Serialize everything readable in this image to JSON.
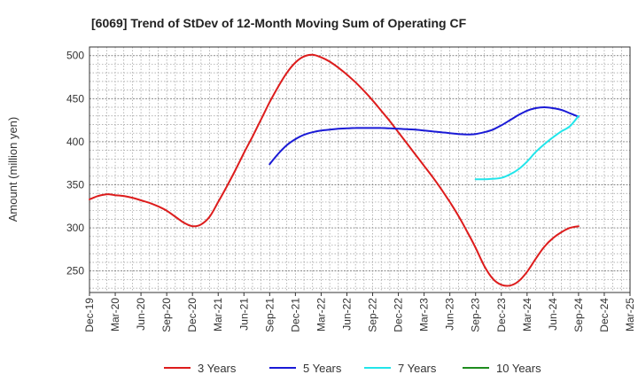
{
  "chart_data": {
    "type": "line",
    "title": "[6069]  Trend of StDev of 12-Month Moving Sum of Operating CF",
    "ylabel": "Amount (million yen)",
    "xlabel": "",
    "ylim": [
      225,
      510
    ],
    "yticks": [
      250,
      300,
      350,
      400,
      450,
      500
    ],
    "grid": true,
    "legend_position": "bottom",
    "x_tick_labels": [
      "Dec-19",
      "Mar-20",
      "Jun-20",
      "Sep-20",
      "Dec-20",
      "Mar-21",
      "Jun-21",
      "Sep-21",
      "Dec-21",
      "Mar-22",
      "Jun-22",
      "Sep-22",
      "Dec-22",
      "Mar-23",
      "Jun-23",
      "Sep-23",
      "Dec-23",
      "Mar-24",
      "Jun-24",
      "Sep-24",
      "Dec-24",
      "Mar-25"
    ],
    "series": [
      {
        "name": "3 Years",
        "color": "#dd1c1c",
        "x": [
          "Dec-19",
          "Jan-20",
          "Feb-20",
          "Mar-20",
          "Apr-20",
          "May-20",
          "Jun-20",
          "Jul-20",
          "Aug-20",
          "Sep-20",
          "Oct-20",
          "Nov-20",
          "Dec-20",
          "Jan-21",
          "Feb-21",
          "Mar-21",
          "Apr-21",
          "May-21",
          "Jun-21",
          "Jul-21",
          "Aug-21",
          "Sep-21",
          "Oct-21",
          "Nov-21",
          "Dec-21",
          "Jan-22",
          "Feb-22",
          "Mar-22",
          "Apr-22",
          "May-22",
          "Jun-22",
          "Jul-22",
          "Aug-22",
          "Sep-22",
          "Oct-22",
          "Nov-22",
          "Dec-22",
          "Jan-23",
          "Feb-23",
          "Mar-23",
          "Apr-23",
          "May-23",
          "Jun-23",
          "Jul-23",
          "Aug-23",
          "Sep-23",
          "Oct-23",
          "Nov-23",
          "Dec-23",
          "Jan-24",
          "Feb-24",
          "Mar-24",
          "Apr-24",
          "May-24",
          "Jun-24",
          "Jul-24",
          "Aug-24",
          "Sep-24"
        ],
        "values": [
          333,
          337,
          339,
          338,
          337,
          335,
          332,
          329,
          325,
          320,
          313,
          306,
          302,
          304,
          313,
          330,
          348,
          367,
          387,
          406,
          426,
          446,
          464,
          480,
          492,
          499,
          501,
          498,
          493,
          486,
          478,
          469,
          459,
          448,
          436,
          424,
          411,
          398,
          385,
          372,
          359,
          345,
          330,
          314,
          296,
          277,
          256,
          241,
          234,
          233,
          238,
          249,
          264,
          278,
          288,
          295,
          300,
          302
        ]
      },
      {
        "name": "5 Years",
        "color": "#1a1ad6",
        "x": [
          "Dec-20",
          "Jan-21",
          "Feb-21",
          "Mar-21",
          "Apr-21",
          "May-21",
          "Jun-21",
          "Jul-21",
          "Aug-21",
          "Sep-21",
          "Oct-21",
          "Nov-21",
          "Dec-21",
          "Jan-22",
          "Feb-22",
          "Mar-22",
          "Apr-22",
          "May-22",
          "Jun-22",
          "Jul-22",
          "Aug-22",
          "Sep-22",
          "Oct-22",
          "Nov-22",
          "Dec-22",
          "Jan-23",
          "Feb-23",
          "Mar-23",
          "Apr-23",
          "May-23",
          "Jun-23",
          "Jul-23",
          "Aug-23",
          "Sep-23",
          "Oct-23",
          "Nov-23",
          "Dec-23",
          "Jan-24",
          "Feb-24",
          "Mar-24",
          "Apr-24",
          "May-24",
          "Jun-24",
          "Jul-24",
          "Aug-24",
          "Sep-24"
        ],
        "values": [
          null,
          null,
          null,
          null,
          null,
          null,
          null,
          null,
          null,
          374,
          386,
          396,
          403,
          408,
          411,
          413,
          414,
          415,
          415.5,
          416,
          416,
          416,
          416,
          415.5,
          415,
          414.5,
          414,
          413,
          412,
          411,
          410,
          409,
          408.5,
          409,
          411,
          414,
          419,
          425,
          431,
          436,
          439,
          440,
          439,
          437,
          433,
          429
        ]
      },
      {
        "name": "7 Years",
        "color": "#22e5ea",
        "x": [
          "Sep-23",
          "Oct-23",
          "Nov-23",
          "Dec-23",
          "Jan-24",
          "Feb-24",
          "Mar-24",
          "Apr-24",
          "May-24",
          "Jun-24",
          "Jul-24",
          "Aug-24",
          "Sep-24"
        ],
        "values": [
          356.5,
          356.5,
          357,
          358,
          362,
          368,
          377,
          388,
          397,
          405,
          412,
          418,
          430
        ]
      },
      {
        "name": "10 Years",
        "color": "#1e8c1e",
        "x": [],
        "values": []
      }
    ]
  }
}
